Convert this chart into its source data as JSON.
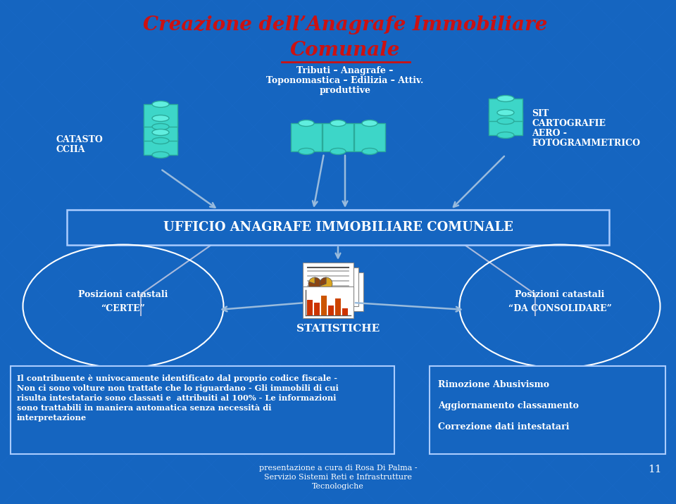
{
  "bg_color": "#1565c0",
  "title_line1": "Creazione dell’Anagrafe Immobiliare",
  "title_line2": "Comunale",
  "title_color": "#cc1111",
  "subtitle1": "Tributi – Anagrafe –",
  "subtitle2": "Toponomastica – Edilizia – Attiv.",
  "subtitle3": "produttive",
  "subtitle_color": "#ffffff",
  "left_label1": "CATASTO",
  "left_label2": "CCIIA",
  "right_label1": "SIT",
  "right_label2": "CARTOGRAFIE",
  "right_label3": "AERO -",
  "right_label4": "FOTOGRAMMETRICO",
  "label_color": "#ffffff",
  "ufficio_text": "UFFICIO ANAGRAFE IMMOBILIARE COMUNALE",
  "ufficio_color": "#ffffff",
  "ufficio_border": "#aaccff",
  "certe_title": "Posizioni catastali",
  "certe_subtitle": "“CERTE”",
  "consolid_title": "Posizioni catastali",
  "consolid_subtitle": "“DA CONSOLIDARE”",
  "ellipse_text_color": "#ffffff",
  "statistiche_text": "STATISTICHE",
  "stat_color": "#ffffff",
  "box1_line1": "Il contribuente è univocamente identificato dal proprio codice fiscale -",
  "box1_line2": "Non ci sono volture non trattate che lo riguardano - Gli immobili di cui",
  "box1_line3": "risulta intestatario sono classati e  attribuiti al 100% - Le informazioni",
  "box1_line4": "sono trattabili in maniera automatica senza necessità di",
  "box1_line5": "interpretazione",
  "box2_line1": "Rimozione Abusivismo",
  "box2_line2": "Aggiornamento classamento",
  "box2_line3": "Correzione dati intestatari",
  "box_text_color": "#ffffff",
  "box_border_color": "#aaccff",
  "footer_text1": "presentazione a cura di Rosa Di Palma -",
  "footer_text2": "Servizio Sistemi Reti e Infrastrutture",
  "footer_text3": "Tecnologiche",
  "page_num": "11",
  "footer_color": "#ffffff",
  "cyl_face": "#3dd6c8",
  "cyl_top": "#60eedf",
  "cyl_edge": "#2aaa9a",
  "arrow_color": "#99bbdd",
  "line_color": "#aabbdd"
}
